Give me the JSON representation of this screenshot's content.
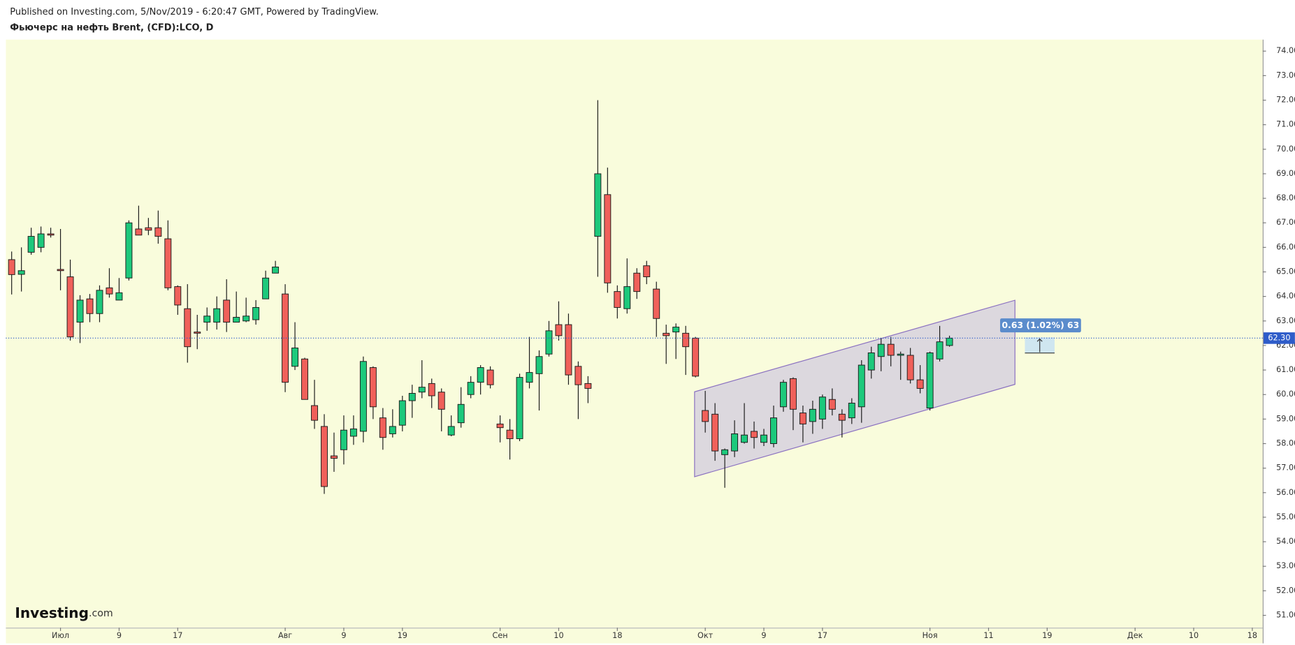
{
  "header": {
    "published": "Published on Investing.com, 5/Nov/2019 - 6:20:47 GMT, Powered by TradingView.",
    "symbol": "Фьючерс на нефть Brent, (CFD):LCO, D"
  },
  "chart_data": {
    "type": "candlestick",
    "watermark": "Investing",
    "watermark_suffix": ".com",
    "measure_label": "0.63 (1.02%) 63",
    "price_line": {
      "value": 62.3,
      "label": "62.30"
    },
    "up_color": "#1dc97c",
    "down_color": "#f0605a",
    "border_color": "#1b1b1b",
    "grid": false,
    "ylim": [
      50.5,
      74.5
    ],
    "yticks": [
      {
        "value": 51,
        "label": "51.00"
      },
      {
        "value": 52,
        "label": "52.00"
      },
      {
        "value": 53,
        "label": "53.00"
      },
      {
        "value": 54,
        "label": "54.00"
      },
      {
        "value": 55,
        "label": "55.00"
      },
      {
        "value": 56,
        "label": "56.00"
      },
      {
        "value": 57,
        "label": "57.00"
      },
      {
        "value": 58,
        "label": "58.00"
      },
      {
        "value": 59,
        "label": "59.00"
      },
      {
        "value": 60,
        "label": "60.00"
      },
      {
        "value": 61,
        "label": "61.00"
      },
      {
        "value": 62,
        "label": "62.00"
      },
      {
        "value": 63,
        "label": "63.00"
      },
      {
        "value": 64,
        "label": "64.00"
      },
      {
        "value": 65,
        "label": "65.00"
      },
      {
        "value": 66,
        "label": "66.00"
      },
      {
        "value": 67,
        "label": "67.00"
      },
      {
        "value": 68,
        "label": "68.00"
      },
      {
        "value": 69,
        "label": "69.00"
      },
      {
        "value": 70,
        "label": "70.00"
      },
      {
        "value": 71,
        "label": "71.00"
      },
      {
        "value": 72,
        "label": "72.00"
      },
      {
        "value": 73,
        "label": "73.00"
      },
      {
        "value": 74,
        "label": "74.00"
      }
    ],
    "categories": [
      null,
      null,
      null,
      null,
      null,
      "Июл",
      null,
      null,
      null,
      null,
      null,
      "9",
      null,
      null,
      null,
      null,
      null,
      "17",
      null,
      null,
      null,
      null,
      null,
      null,
      null,
      null,
      null,
      null,
      "Авг",
      null,
      null,
      null,
      null,
      null,
      "9",
      null,
      null,
      null,
      null,
      null,
      "19",
      null,
      null,
      null,
      null,
      null,
      null,
      null,
      null,
      null,
      "Сен",
      null,
      null,
      null,
      null,
      null,
      "10",
      null,
      null,
      null,
      null,
      null,
      "18",
      null,
      null,
      null,
      null,
      null,
      null,
      null,
      null,
      "Окт",
      null,
      null,
      null,
      null,
      null,
      "9",
      null,
      null,
      null,
      null,
      null,
      "17",
      null,
      null,
      null,
      null,
      null,
      null,
      null,
      null,
      null,
      null,
      "Ноя",
      null,
      null,
      null,
      null,
      null,
      "11",
      null,
      null,
      null,
      null,
      null,
      "19",
      null,
      null,
      null,
      null,
      null,
      null,
      null,
      null,
      "Дек",
      null,
      null,
      null,
      null,
      null,
      "10",
      null,
      null,
      null,
      null,
      null,
      "18"
    ],
    "open": [
      65.5,
      64.9,
      65.8,
      66.0,
      66.55,
      65.1,
      64.8,
      62.95,
      63.9,
      63.3,
      64.35,
      63.85,
      64.75,
      66.75,
      66.8,
      66.8,
      66.35,
      64.4,
      63.5,
      62.55,
      62.95,
      62.95,
      63.85,
      62.95,
      63.0,
      63.05,
      63.9,
      64.95,
      64.1,
      61.15,
      61.45,
      59.55,
      58.7,
      57.5,
      57.75,
      58.3,
      58.5,
      61.1,
      59.05,
      58.4,
      58.75,
      59.75,
      60.1,
      60.45,
      60.1,
      58.35,
      58.85,
      60.0,
      60.5,
      61.0,
      58.8,
      58.55,
      58.2,
      60.5,
      60.85,
      61.65,
      62.85,
      62.85,
      61.15,
      60.45,
      66.45,
      68.15,
      64.2,
      63.5,
      64.95,
      65.25,
      64.3,
      62.5,
      62.55,
      62.5,
      62.3,
      59.35,
      59.2,
      57.55,
      57.7,
      58.05,
      58.5,
      58.05,
      58.0,
      59.5,
      60.65,
      59.25,
      58.9,
      59.0,
      59.8,
      59.2,
      59.05,
      59.5,
      61.0,
      61.55,
      62.05,
      61.6,
      61.6,
      60.6,
      59.45,
      61.45,
      62.0,
      null,
      null,
      null,
      null,
      null,
      null,
      null,
      null,
      null,
      null,
      null,
      null,
      null,
      null,
      null,
      null,
      null,
      null,
      null,
      null,
      null,
      null,
      null,
      null,
      null,
      null,
      null,
      null,
      null,
      null,
      null
    ],
    "high": [
      65.83,
      66.0,
      66.8,
      66.85,
      66.8,
      66.75,
      65.5,
      64.05,
      64.1,
      64.45,
      65.15,
      64.75,
      67.1,
      67.7,
      67.2,
      67.5,
      67.1,
      64.45,
      64.5,
      63.25,
      63.55,
      64.0,
      64.7,
      64.2,
      63.95,
      63.85,
      65.05,
      65.45,
      64.5,
      62.95,
      61.5,
      60.6,
      59.2,
      58.45,
      59.15,
      59.15,
      61.55,
      61.15,
      59.45,
      59.4,
      59.95,
      60.4,
      61.4,
      60.65,
      60.25,
      59.15,
      60.3,
      60.75,
      61.2,
      61.15,
      59.15,
      59.0,
      60.85,
      62.35,
      61.8,
      63.0,
      63.8,
      63.3,
      61.35,
      60.75,
      72.0,
      69.25,
      64.45,
      65.55,
      65.15,
      65.45,
      64.6,
      62.85,
      62.9,
      62.8,
      62.35,
      60.15,
      59.65,
      57.8,
      58.95,
      59.65,
      58.9,
      58.6,
      59.55,
      60.6,
      60.7,
      59.55,
      59.75,
      60.0,
      60.25,
      59.4,
      59.85,
      61.4,
      61.95,
      62.3,
      62.35,
      61.75,
      61.9,
      61.2,
      61.75,
      62.8,
      62.4,
      null,
      null,
      null,
      null,
      null,
      null,
      null,
      null,
      null,
      null,
      null,
      null,
      null,
      null,
      null,
      null,
      null,
      null,
      null,
      null,
      null,
      null,
      null,
      null,
      null,
      null,
      null,
      null,
      null,
      null,
      null
    ],
    "low": [
      64.08,
      64.2,
      65.7,
      65.8,
      66.4,
      64.25,
      62.2,
      62.1,
      62.95,
      62.95,
      63.95,
      63.85,
      64.65,
      66.5,
      66.5,
      66.15,
      64.25,
      63.25,
      61.3,
      61.85,
      62.6,
      62.65,
      62.55,
      62.95,
      62.95,
      62.85,
      63.9,
      64.95,
      60.1,
      61.0,
      59.8,
      58.6,
      55.95,
      56.85,
      57.15,
      57.95,
      58.05,
      59.0,
      57.75,
      58.25,
      58.5,
      59.05,
      59.85,
      59.45,
      58.5,
      58.3,
      58.65,
      59.85,
      60.0,
      60.25,
      58.05,
      57.35,
      58.1,
      60.25,
      59.35,
      61.55,
      62.2,
      60.4,
      59.0,
      59.65,
      64.8,
      64.15,
      63.1,
      63.3,
      63.9,
      64.5,
      62.35,
      61.25,
      61.45,
      60.8,
      60.7,
      58.45,
      57.3,
      56.2,
      57.45,
      58.0,
      57.8,
      57.9,
      57.85,
      59.3,
      58.55,
      58.05,
      58.4,
      58.6,
      59.15,
      58.25,
      58.8,
      58.85,
      60.65,
      60.95,
      61.15,
      60.6,
      60.45,
      60.05,
      59.35,
      61.35,
      61.95,
      null,
      null,
      null,
      null,
      null,
      null,
      null,
      null,
      null,
      null,
      null,
      null,
      null,
      null,
      null,
      null,
      null,
      null,
      null,
      null,
      null,
      null,
      null,
      null,
      null,
      null,
      null,
      null,
      null,
      null,
      null
    ],
    "close": [
      64.89,
      65.05,
      66.45,
      66.55,
      66.5,
      65.05,
      62.35,
      63.85,
      63.3,
      64.25,
      64.1,
      64.15,
      67.0,
      66.5,
      66.7,
      66.45,
      64.35,
      63.65,
      61.95,
      62.5,
      63.2,
      63.5,
      62.95,
      63.15,
      63.2,
      63.55,
      64.75,
      65.2,
      60.5,
      61.9,
      59.8,
      58.95,
      56.25,
      57.4,
      58.55,
      58.6,
      61.35,
      59.5,
      58.25,
      58.7,
      59.75,
      60.05,
      60.3,
      59.95,
      59.4,
      58.7,
      59.6,
      60.5,
      61.1,
      60.4,
      58.65,
      58.2,
      60.7,
      60.9,
      61.55,
      62.6,
      62.4,
      60.8,
      60.4,
      60.25,
      69.0,
      64.55,
      63.55,
      64.4,
      64.2,
      64.8,
      63.1,
      62.4,
      62.75,
      61.95,
      60.75,
      58.9,
      57.7,
      57.75,
      58.4,
      58.35,
      58.25,
      58.35,
      59.05,
      60.5,
      59.4,
      58.8,
      59.4,
      59.9,
      59.4,
      58.95,
      59.65,
      61.2,
      61.7,
      62.05,
      61.6,
      61.65,
      60.6,
      60.25,
      61.7,
      62.15,
      62.3,
      null,
      null,
      null,
      null,
      null,
      null,
      null,
      null,
      null,
      null,
      null,
      null,
      null,
      null,
      null,
      null,
      null,
      null,
      null,
      null,
      null,
      null,
      null,
      null,
      null,
      null,
      null,
      null,
      null,
      null,
      null
    ]
  }
}
